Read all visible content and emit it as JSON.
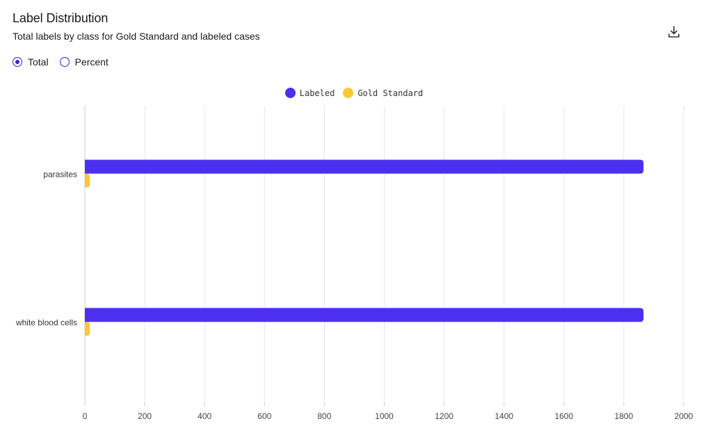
{
  "header": {
    "title": "Label Distribution",
    "subtitle": "Total labels by class for Gold Standard and labeled cases",
    "download_icon": "download-icon"
  },
  "mode_toggle": {
    "options": [
      {
        "label": "Total",
        "selected": true
      },
      {
        "label": "Percent",
        "selected": false
      }
    ]
  },
  "colors": {
    "labeled": "#4d2ff0",
    "gold_standard": "#f9c935",
    "accent": "#3e1fd0",
    "grid": "#e6e6e6"
  },
  "chart_data": {
    "type": "bar",
    "orientation": "horizontal",
    "categories": [
      "parasites",
      "white blood cells"
    ],
    "series": [
      {
        "name": "Labeled",
        "values": [
          1866,
          1866
        ]
      },
      {
        "name": "Gold Standard",
        "values": [
          17,
          17
        ]
      }
    ],
    "xlim": [
      0,
      2000
    ],
    "xticks": [
      0,
      200,
      400,
      600,
      800,
      1000,
      1200,
      1400,
      1600,
      1800,
      2000
    ],
    "grid": true,
    "legend_position": "top-center"
  }
}
